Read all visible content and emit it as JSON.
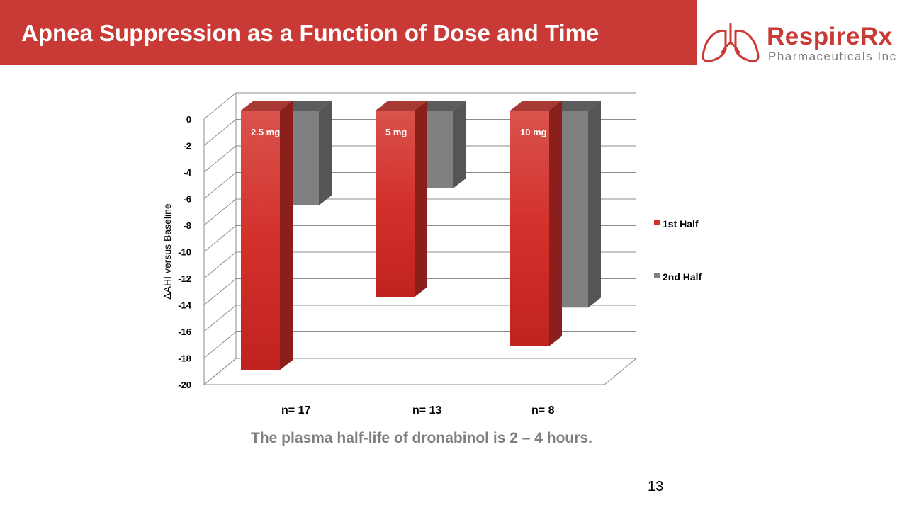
{
  "slide": {
    "title": "Apnea Suppression as a Function of Dose and Time",
    "caption": "The plasma half-life of dronabinol is 2 – 4 hours.",
    "page_number": "13"
  },
  "logo": {
    "brand": "RespireRx",
    "sub": "Pharmaceuticals Inc",
    "icon": "lungs-icon"
  },
  "colors": {
    "title_bar": "#c93a36",
    "first_half": "#d3302b",
    "second_half": "#808080"
  },
  "chart_data": {
    "type": "bar",
    "ylabel": "ΔAHI versus Baseline",
    "ylim": [
      -20,
      0
    ],
    "yticks": [
      "0",
      "-2",
      "-4",
      "-6",
      "-8",
      "-10",
      "-12",
      "-14",
      "-16",
      "-18",
      "-20"
    ],
    "grid": true,
    "legend_position": "right",
    "groups": [
      {
        "dose": "2.5 mg",
        "n": "n= 17"
      },
      {
        "dose": "5 mg",
        "n": "n= 13"
      },
      {
        "dose": "10 mg",
        "n": "n= 8"
      }
    ],
    "series": [
      {
        "name": "1st Half",
        "values": [
          -18.9,
          -13.4,
          -17.1
        ]
      },
      {
        "name": "2nd Half",
        "values": [
          -6.5,
          -5.2,
          -14.2
        ]
      }
    ]
  }
}
